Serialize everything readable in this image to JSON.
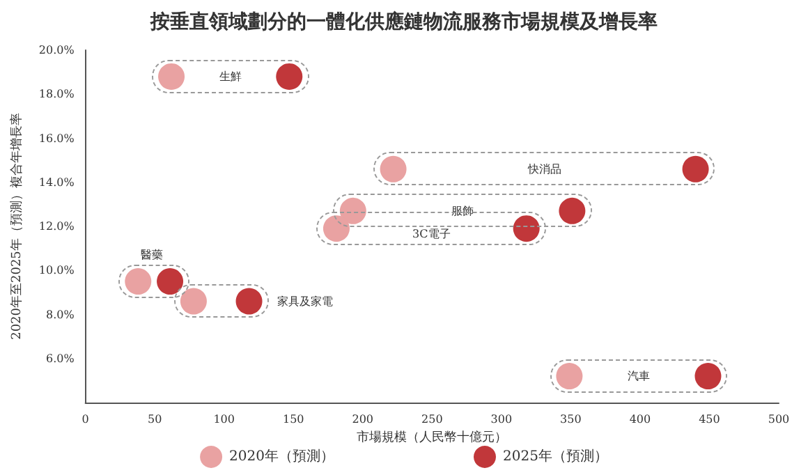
{
  "chart_data": {
    "type": "scatter",
    "title": "按垂直領域劃分的一體化供應鏈物流服務市場規模及增長率",
    "xlabel": "市場規模（人民幣十億元）",
    "ylabel": "2020年至2025年（預測）複合年增長率",
    "series": [
      {
        "name": "2020年（預測）",
        "color": "#e9a2a2",
        "x": [
          62,
          222,
          193,
          181,
          38,
          78,
          349
        ],
        "values": [
          18.8,
          14.6,
          12.7,
          11.9,
          9.5,
          8.6,
          5.2
        ]
      },
      {
        "name": "2025年（預測）",
        "color": "#c1373a",
        "x": [
          147,
          440,
          351,
          318,
          61,
          118,
          449
        ],
        "values": [
          18.8,
          14.6,
          12.7,
          11.9,
          9.5,
          8.6,
          5.2
        ]
      }
    ],
    "annotations": [
      "生鮮",
      "快消品",
      "服飾",
      "3C電子",
      "醫藥",
      "家具及家電",
      "汽車"
    ],
    "xlim": [
      0,
      500
    ],
    "xticks": [
      0,
      50,
      100,
      150,
      200,
      250,
      300,
      350,
      400,
      450,
      500
    ],
    "ylim": [
      4,
      20
    ],
    "yticks": [
      {
        "value": 6,
        "label": "6.0%"
      },
      {
        "value": 8,
        "label": "8.0%"
      },
      {
        "value": 10,
        "label": "10.0%"
      },
      {
        "value": 12,
        "label": "12.0%"
      },
      {
        "value": 14,
        "label": "14.0%"
      },
      {
        "value": 16,
        "label": "16.0%"
      },
      {
        "value": 18,
        "label": "18.0%"
      },
      {
        "value": 20,
        "label": "20.0%"
      }
    ],
    "grid": false,
    "legend": "bottom",
    "marker": "circle"
  }
}
